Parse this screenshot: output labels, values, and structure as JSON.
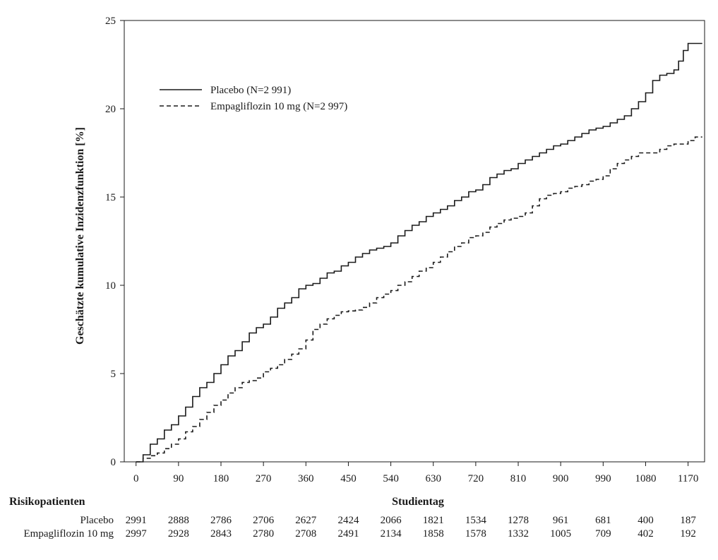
{
  "chart_data": {
    "type": "line",
    "xlabel": "Studientag",
    "ylabel": "Geschätzte kumulative Inzidenzfunktion [%]",
    "xlim": [
      -25,
      1205
    ],
    "ylim": [
      0,
      25
    ],
    "x_ticks": [
      0,
      90,
      180,
      270,
      360,
      450,
      540,
      630,
      720,
      810,
      900,
      990,
      1080,
      1170
    ],
    "y_ticks": [
      0,
      5,
      10,
      15,
      20,
      25
    ],
    "grid": false,
    "legend_position": "top-left",
    "series": [
      {
        "name": "Placebo (N=2 991)",
        "line_style": "solid",
        "color": "#1a1a1a",
        "x": [
          0,
          15,
          30,
          45,
          60,
          75,
          90,
          105,
          120,
          135,
          150,
          165,
          180,
          195,
          210,
          225,
          240,
          255,
          270,
          285,
          300,
          315,
          330,
          345,
          360,
          375,
          390,
          405,
          420,
          435,
          450,
          465,
          480,
          495,
          510,
          525,
          540,
          555,
          570,
          585,
          600,
          615,
          630,
          645,
          660,
          675,
          690,
          705,
          720,
          735,
          750,
          765,
          780,
          795,
          810,
          825,
          840,
          855,
          870,
          885,
          900,
          915,
          930,
          945,
          960,
          975,
          990,
          1005,
          1020,
          1035,
          1050,
          1065,
          1080,
          1095,
          1110,
          1125,
          1140,
          1150,
          1160,
          1170,
          1180,
          1200
        ],
        "y": [
          0,
          0.4,
          1.0,
          1.3,
          1.8,
          2.1,
          2.6,
          3.1,
          3.7,
          4.2,
          4.5,
          5.0,
          5.5,
          6.0,
          6.3,
          6.8,
          7.3,
          7.6,
          7.8,
          8.2,
          8.7,
          9.0,
          9.3,
          9.8,
          10.0,
          10.1,
          10.4,
          10.7,
          10.8,
          11.1,
          11.3,
          11.6,
          11.8,
          12.0,
          12.1,
          12.2,
          12.4,
          12.8,
          13.1,
          13.4,
          13.6,
          13.9,
          14.1,
          14.3,
          14.5,
          14.8,
          15.0,
          15.3,
          15.4,
          15.7,
          16.1,
          16.3,
          16.5,
          16.6,
          16.9,
          17.1,
          17.3,
          17.5,
          17.7,
          17.9,
          18.0,
          18.2,
          18.4,
          18.6,
          18.8,
          18.9,
          19.0,
          19.2,
          19.4,
          19.6,
          20.0,
          20.4,
          20.9,
          21.6,
          21.9,
          22.0,
          22.2,
          22.7,
          23.3,
          23.7,
          23.7,
          23.7
        ]
      },
      {
        "name": "Empagliflozin 10 mg (N=2 997)",
        "line_style": "dashed",
        "color": "#1a1a1a",
        "x": [
          0,
          15,
          30,
          45,
          60,
          75,
          90,
          105,
          120,
          135,
          150,
          165,
          180,
          195,
          210,
          225,
          240,
          255,
          270,
          285,
          300,
          315,
          330,
          345,
          360,
          375,
          390,
          405,
          420,
          435,
          450,
          465,
          480,
          495,
          510,
          525,
          540,
          555,
          570,
          585,
          600,
          615,
          630,
          645,
          660,
          675,
          690,
          705,
          720,
          735,
          750,
          765,
          780,
          795,
          810,
          825,
          840,
          855,
          870,
          885,
          900,
          915,
          930,
          945,
          960,
          975,
          990,
          1005,
          1020,
          1035,
          1050,
          1065,
          1080,
          1095,
          1110,
          1125,
          1140,
          1155,
          1170,
          1185,
          1200
        ],
        "y": [
          0,
          0.2,
          0.35,
          0.5,
          0.75,
          1.0,
          1.3,
          1.7,
          2.0,
          2.4,
          2.8,
          3.2,
          3.5,
          3.9,
          4.2,
          4.5,
          4.6,
          4.75,
          5.1,
          5.3,
          5.5,
          5.8,
          6.1,
          6.4,
          6.9,
          7.5,
          7.8,
          8.1,
          8.3,
          8.5,
          8.55,
          8.6,
          8.75,
          9.0,
          9.3,
          9.5,
          9.7,
          10.0,
          10.2,
          10.5,
          10.8,
          11.0,
          11.3,
          11.6,
          11.9,
          12.2,
          12.4,
          12.7,
          12.8,
          13.0,
          13.3,
          13.5,
          13.7,
          13.8,
          13.9,
          14.1,
          14.5,
          14.9,
          15.1,
          15.2,
          15.3,
          15.5,
          15.6,
          15.7,
          15.9,
          16.0,
          16.2,
          16.6,
          16.9,
          17.1,
          17.3,
          17.5,
          17.5,
          17.5,
          17.7,
          17.9,
          18.0,
          18.0,
          18.2,
          18.4,
          18.4
        ]
      }
    ],
    "risk_table": {
      "header": "Risikopatienten",
      "rows": [
        {
          "label": "Placebo",
          "values": [
            "2991",
            "2888",
            "2786",
            "2706",
            "2627",
            "2424",
            "2066",
            "1821",
            "1534",
            "1278",
            "961",
            "681",
            "400",
            "187"
          ]
        },
        {
          "label": "Empagliflozin 10 mg",
          "values": [
            "2997",
            "2928",
            "2843",
            "2780",
            "2708",
            "2491",
            "2134",
            "1858",
            "1578",
            "1332",
            "1005",
            "709",
            "402",
            "192"
          ]
        }
      ]
    }
  }
}
